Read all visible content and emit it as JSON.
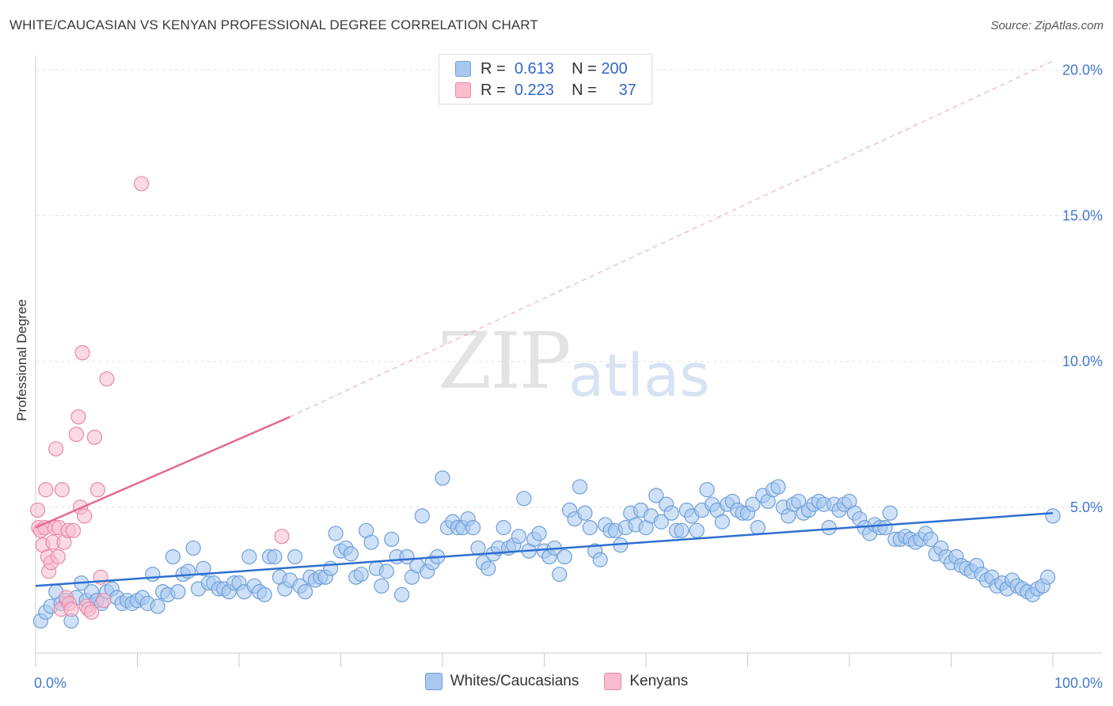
{
  "header": {
    "title": "WHITE/CAUCASIAN VS KENYAN PROFESSIONAL DEGREE CORRELATION CHART",
    "source": "Source: ZipAtlas.com"
  },
  "watermark": {
    "part1": "ZIP",
    "part2": "atlas"
  },
  "legend": {
    "rows": [
      {
        "r_label": "R =",
        "r_value": "0.613",
        "n_label": "N =",
        "n_value": "200",
        "color": "#a8c8f0",
        "border": "#6f9fd8"
      },
      {
        "r_label": "R =",
        "r_value": "0.223",
        "n_label": "N =",
        "n_value": "37",
        "color": "#f8bccd",
        "border": "#e88aa5"
      }
    ]
  },
  "bottom_legend": [
    {
      "label": "Whites/Caucasians",
      "color": "#a8c8f0",
      "border": "#6f9fd8"
    },
    {
      "label": "Kenyans",
      "color": "#f8bccd",
      "border": "#e88aa5"
    }
  ],
  "chart_data": {
    "type": "scatter",
    "title": "WHITE/CAUCASIAN VS KENYAN PROFESSIONAL DEGREE CORRELATION CHART",
    "xlabel": "",
    "ylabel": "Professional Degree",
    "xlim": [
      0,
      100
    ],
    "ylim": [
      0,
      20.5
    ],
    "x_tick_labels": [
      "0.0%",
      "100.0%"
    ],
    "y_ticks": [
      5,
      10,
      15,
      20
    ],
    "y_tick_labels": [
      "5.0%",
      "10.0%",
      "15.0%",
      "20.0%"
    ],
    "grid": true,
    "legend_position": "top-center",
    "series": [
      {
        "name": "Whites/Caucasians",
        "color": "#6f9fd8",
        "fill": "#a8c8f0",
        "trend": {
          "x": [
            0,
            100
          ],
          "y": [
            2.3,
            4.8
          ]
        },
        "points": [
          [
            0.5,
            1.1
          ],
          [
            1,
            1.4
          ],
          [
            1.5,
            1.6
          ],
          [
            2,
            2.1
          ],
          [
            2.5,
            1.7
          ],
          [
            3,
            1.8
          ],
          [
            3.5,
            1.1
          ],
          [
            4,
            1.9
          ],
          [
            4.5,
            2.4
          ],
          [
            5,
            1.8
          ],
          [
            5.5,
            2.1
          ],
          [
            6,
            1.8
          ],
          [
            6.5,
            1.7
          ],
          [
            7,
            2.1
          ],
          [
            7.5,
            2.2
          ],
          [
            8,
            1.9
          ],
          [
            8.5,
            1.7
          ],
          [
            9,
            1.8
          ],
          [
            9.5,
            1.7
          ],
          [
            10,
            1.8
          ],
          [
            10.5,
            1.9
          ],
          [
            11,
            1.7
          ],
          [
            11.5,
            2.7
          ],
          [
            12,
            1.6
          ],
          [
            12.5,
            2.1
          ],
          [
            13,
            2.0
          ],
          [
            13.5,
            3.3
          ],
          [
            14,
            2.1
          ],
          [
            14.5,
            2.7
          ],
          [
            15,
            2.8
          ],
          [
            15.5,
            3.6
          ],
          [
            16,
            2.2
          ],
          [
            16.5,
            2.9
          ],
          [
            17,
            2.4
          ],
          [
            17.5,
            2.4
          ],
          [
            18,
            2.2
          ],
          [
            18.5,
            2.2
          ],
          [
            19,
            2.1
          ],
          [
            19.5,
            2.4
          ],
          [
            20,
            2.4
          ],
          [
            20.5,
            2.1
          ],
          [
            21,
            3.3
          ],
          [
            21.5,
            2.3
          ],
          [
            22,
            2.1
          ],
          [
            22.5,
            2.0
          ],
          [
            23,
            3.3
          ],
          [
            23.5,
            3.3
          ],
          [
            24,
            2.6
          ],
          [
            24.5,
            2.2
          ],
          [
            25,
            2.5
          ],
          [
            25.5,
            3.3
          ],
          [
            26,
            2.3
          ],
          [
            26.5,
            2.1
          ],
          [
            27,
            2.6
          ],
          [
            27.5,
            2.5
          ],
          [
            28,
            2.6
          ],
          [
            28.5,
            2.6
          ],
          [
            29,
            2.9
          ],
          [
            29.5,
            4.1
          ],
          [
            30,
            3.5
          ],
          [
            30.5,
            3.6
          ],
          [
            31,
            3.4
          ],
          [
            31.5,
            2.6
          ],
          [
            32,
            2.7
          ],
          [
            32.5,
            4.2
          ],
          [
            33,
            3.8
          ],
          [
            33.5,
            2.9
          ],
          [
            34,
            2.3
          ],
          [
            34.5,
            2.8
          ],
          [
            35,
            3.9
          ],
          [
            35.5,
            3.3
          ],
          [
            36,
            2.0
          ],
          [
            36.5,
            3.3
          ],
          [
            37,
            2.6
          ],
          [
            37.5,
            3.0
          ],
          [
            38,
            4.7
          ],
          [
            38.5,
            2.8
          ],
          [
            39,
            3.1
          ],
          [
            39.5,
            3.3
          ],
          [
            40,
            6.0
          ],
          [
            40.5,
            4.3
          ],
          [
            41,
            4.5
          ],
          [
            41.5,
            4.3
          ],
          [
            42,
            4.3
          ],
          [
            42.5,
            4.6
          ],
          [
            43,
            4.3
          ],
          [
            43.5,
            3.6
          ],
          [
            44,
            3.1
          ],
          [
            44.5,
            2.9
          ],
          [
            45,
            3.4
          ],
          [
            45.5,
            3.6
          ],
          [
            46,
            4.3
          ],
          [
            46.5,
            3.6
          ],
          [
            47,
            3.7
          ],
          [
            47.5,
            4.0
          ],
          [
            48,
            5.3
          ],
          [
            48.5,
            3.5
          ],
          [
            49,
            3.9
          ],
          [
            49.5,
            4.1
          ],
          [
            50,
            3.5
          ],
          [
            50.5,
            3.3
          ],
          [
            51,
            3.6
          ],
          [
            51.5,
            2.7
          ],
          [
            52,
            3.3
          ],
          [
            52.5,
            4.9
          ],
          [
            53,
            4.6
          ],
          [
            53.5,
            5.7
          ],
          [
            54,
            4.8
          ],
          [
            54.5,
            4.3
          ],
          [
            55,
            3.5
          ],
          [
            55.5,
            3.2
          ],
          [
            56,
            4.4
          ],
          [
            56.5,
            4.2
          ],
          [
            57,
            4.2
          ],
          [
            57.5,
            3.7
          ],
          [
            58,
            4.3
          ],
          [
            58.5,
            4.8
          ],
          [
            59,
            4.4
          ],
          [
            59.5,
            4.9
          ],
          [
            60,
            4.3
          ],
          [
            60.5,
            4.7
          ],
          [
            61,
            5.4
          ],
          [
            61.5,
            4.5
          ],
          [
            62,
            5.1
          ],
          [
            62.5,
            4.8
          ],
          [
            63,
            4.2
          ],
          [
            63.5,
            4.2
          ],
          [
            64,
            4.9
          ],
          [
            64.5,
            4.7
          ],
          [
            65,
            4.2
          ],
          [
            65.5,
            4.9
          ],
          [
            66,
            5.6
          ],
          [
            66.5,
            5.1
          ],
          [
            67,
            4.9
          ],
          [
            67.5,
            4.5
          ],
          [
            68,
            5.1
          ],
          [
            68.5,
            5.2
          ],
          [
            69,
            4.9
          ],
          [
            69.5,
            4.8
          ],
          [
            70,
            4.8
          ],
          [
            70.5,
            5.1
          ],
          [
            71,
            4.3
          ],
          [
            71.5,
            5.4
          ],
          [
            72,
            5.2
          ],
          [
            72.5,
            5.6
          ],
          [
            73,
            5.7
          ],
          [
            73.5,
            5.0
          ],
          [
            74,
            4.7
          ],
          [
            74.5,
            5.1
          ],
          [
            75,
            5.2
          ],
          [
            75.5,
            4.8
          ],
          [
            76,
            4.9
          ],
          [
            76.5,
            5.1
          ],
          [
            77,
            5.2
          ],
          [
            77.5,
            5.1
          ],
          [
            78,
            4.3
          ],
          [
            78.5,
            5.1
          ],
          [
            79,
            4.9
          ],
          [
            79.5,
            5.1
          ],
          [
            80,
            5.2
          ],
          [
            80.5,
            4.8
          ],
          [
            81,
            4.6
          ],
          [
            81.5,
            4.3
          ],
          [
            82,
            4.1
          ],
          [
            82.5,
            4.4
          ],
          [
            83,
            4.3
          ],
          [
            83.5,
            4.3
          ],
          [
            84,
            4.8
          ],
          [
            84.5,
            3.9
          ],
          [
            85,
            3.9
          ],
          [
            85.5,
            4.0
          ],
          [
            86,
            3.9
          ],
          [
            86.5,
            3.8
          ],
          [
            87,
            3.9
          ],
          [
            87.5,
            4.1
          ],
          [
            88,
            3.9
          ],
          [
            88.5,
            3.4
          ],
          [
            89,
            3.6
          ],
          [
            89.5,
            3.3
          ],
          [
            90,
            3.1
          ],
          [
            90.5,
            3.3
          ],
          [
            91,
            3.0
          ],
          [
            91.5,
            2.9
          ],
          [
            92,
            2.8
          ],
          [
            92.5,
            3.0
          ],
          [
            93,
            2.7
          ],
          [
            93.5,
            2.5
          ],
          [
            94,
            2.6
          ],
          [
            94.5,
            2.3
          ],
          [
            95,
            2.4
          ],
          [
            95.5,
            2.2
          ],
          [
            96,
            2.5
          ],
          [
            96.5,
            2.3
          ],
          [
            97,
            2.2
          ],
          [
            97.5,
            2.1
          ],
          [
            98,
            2.0
          ],
          [
            98.5,
            2.2
          ],
          [
            99,
            2.3
          ],
          [
            99.5,
            2.6
          ],
          [
            100,
            4.7
          ]
        ]
      },
      {
        "name": "Kenyans",
        "color": "#e88aa5",
        "fill": "#f8bccd",
        "trend": {
          "x": [
            0,
            25
          ],
          "y": [
            4.3,
            8.1
          ],
          "dashed_to": [
            100,
            20.3
          ]
        },
        "points": [
          [
            0.2,
            4.9
          ],
          [
            0.3,
            4.3
          ],
          [
            0.5,
            4.2
          ],
          [
            0.7,
            3.7
          ],
          [
            0.9,
            4.3
          ],
          [
            1,
            5.6
          ],
          [
            1.2,
            3.3
          ],
          [
            1.3,
            2.8
          ],
          [
            1.5,
            3.1
          ],
          [
            1.7,
            3.8
          ],
          [
            1.9,
            4.3
          ],
          [
            2,
            7.0
          ],
          [
            2.2,
            3.3
          ],
          [
            2.3,
            4.3
          ],
          [
            2.5,
            1.5
          ],
          [
            2.6,
            5.6
          ],
          [
            2.8,
            3.8
          ],
          [
            3,
            1.9
          ],
          [
            3.2,
            4.2
          ],
          [
            3.3,
            1.7
          ],
          [
            3.5,
            1.5
          ],
          [
            3.7,
            4.2
          ],
          [
            4,
            7.5
          ],
          [
            4.2,
            8.1
          ],
          [
            4.4,
            5.0
          ],
          [
            4.6,
            10.3
          ],
          [
            4.8,
            4.7
          ],
          [
            5,
            1.6
          ],
          [
            5.2,
            1.5
          ],
          [
            5.5,
            1.4
          ],
          [
            5.8,
            7.4
          ],
          [
            6.1,
            5.6
          ],
          [
            6.4,
            2.6
          ],
          [
            6.7,
            1.8
          ],
          [
            7,
            9.4
          ],
          [
            10.4,
            16.1
          ],
          [
            24.2,
            4.0
          ]
        ]
      }
    ]
  }
}
